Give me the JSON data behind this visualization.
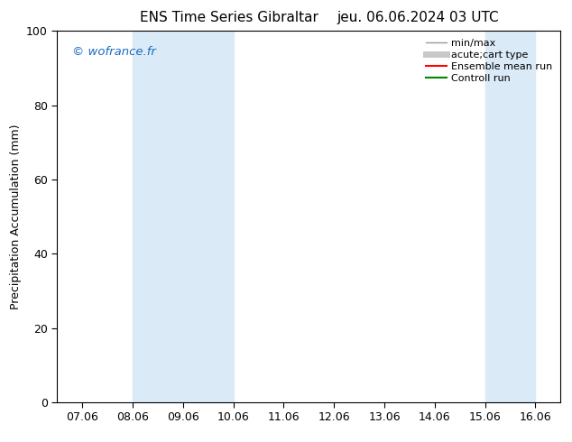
{
  "title_left": "ENS Time Series Gibraltar",
  "title_right": "jeu. 06.06.2024 03 UTC",
  "ylabel": "Precipitation Accumulation (mm)",
  "ylim": [
    0,
    100
  ],
  "yticks": [
    0,
    20,
    40,
    60,
    80,
    100
  ],
  "x_tick_labels": [
    "07.06",
    "08.06",
    "09.06",
    "10.06",
    "11.06",
    "12.06",
    "13.06",
    "14.06",
    "15.06",
    "16.06"
  ],
  "x_tick_positions": [
    0,
    1,
    2,
    3,
    4,
    5,
    6,
    7,
    8,
    9
  ],
  "shaded_regions": [
    {
      "x_start": 1,
      "x_end": 3,
      "color": "#daeaf7"
    },
    {
      "x_start": 8,
      "x_end": 9,
      "color": "#daeaf7"
    }
  ],
  "watermark_text": "© wofrance.fr",
  "watermark_color": "#1a6bbf",
  "legend_entries": [
    {
      "label": "min/max",
      "color": "#999999",
      "lw": 1.0
    },
    {
      "label": "acute;cart type",
      "color": "#c8c8c8",
      "lw": 5
    },
    {
      "label": "Ensemble mean run",
      "color": "#ff0000",
      "lw": 1.5
    },
    {
      "label": "Controll run",
      "color": "#008800",
      "lw": 1.5
    }
  ],
  "plot_bg_color": "#ffffff",
  "fig_bg_color": "#ffffff",
  "title_fontsize": 11,
  "axis_fontsize": 9,
  "tick_fontsize": 9,
  "legend_fontsize": 8
}
